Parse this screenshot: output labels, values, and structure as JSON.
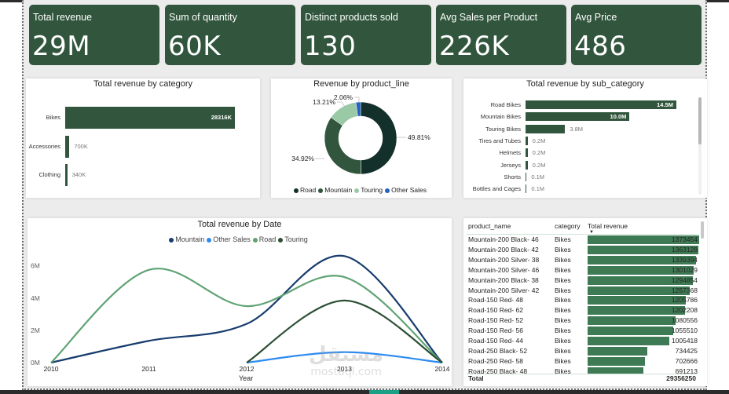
{
  "kpis": [
    {
      "label": "Total revenue",
      "value": "29M"
    },
    {
      "label": "Sum of quantity",
      "value": "60K"
    },
    {
      "label": "Distinct products sold",
      "value": "130"
    },
    {
      "label": "Avg Sales per Product",
      "value": "226K"
    },
    {
      "label": "Avg Price",
      "value": "486"
    }
  ],
  "colors": {
    "kpi_bg": "#31563d",
    "bar": "#31563d",
    "table_bar": "#3e7a54",
    "road": "#14302b",
    "mountain": "#31563d",
    "touring": "#9ac9a6",
    "other_sales": "#2260c4",
    "line_mountain": "#173c6e",
    "line_other": "#2e8bf0",
    "line_road": "#5fa374",
    "line_touring": "#2c4f36"
  },
  "chart_data": [
    {
      "type": "bar",
      "orientation": "horizontal",
      "title": "Total revenue by category",
      "categories": [
        "Bikes",
        "Accessories",
        "Clothing"
      ],
      "values": [
        28316,
        700,
        340
      ],
      "value_labels": [
        "28316K",
        "700K",
        "340K"
      ],
      "unit": "K"
    },
    {
      "type": "pie",
      "donut": true,
      "title": "Revenue by product_line",
      "categories": [
        "Road",
        "Mountain",
        "Touring",
        "Other Sales"
      ],
      "values": [
        49.81,
        34.92,
        13.21,
        2.06
      ],
      "value_labels": [
        "49.81%",
        "34.92%",
        "13.21%",
        "2.06%"
      ],
      "legend": [
        "Road",
        "Mountain",
        "Touring",
        "Other Sales"
      ],
      "legend_position": "bottom"
    },
    {
      "type": "bar",
      "orientation": "horizontal",
      "title": "Total revenue by sub_category",
      "categories": [
        "Road Bikes",
        "Mountain Bikes",
        "Touring Bikes",
        "Tires and Tubes",
        "Helmets",
        "Jerseys",
        "Shorts",
        "Bottles and Cages"
      ],
      "values": [
        14.5,
        10.0,
        3.8,
        0.2,
        0.2,
        0.2,
        0.1,
        0.1
      ],
      "value_labels": [
        "14.5M",
        "10.0M",
        "3.8M",
        "0.2M",
        "0.2M",
        "0.2M",
        "0.1M",
        "0.1M"
      ],
      "unit": "M"
    },
    {
      "type": "line",
      "title": "Total revenue by Date",
      "xlabel": "Year",
      "ylabel": "",
      "x": [
        2010,
        2011,
        2012,
        2013,
        2014
      ],
      "x_ticks": [
        "2010",
        "2011",
        "2012",
        "2013",
        "2014"
      ],
      "y_ticks": [
        "0M",
        "2M",
        "4M",
        "6M"
      ],
      "ylim": [
        0,
        7.2
      ],
      "legend_position": "top",
      "series": [
        {
          "name": "Mountain",
          "values": [
            0,
            1.35,
            2.4,
            6.6,
            0
          ]
        },
        {
          "name": "Other Sales",
          "values": [
            null,
            null,
            0,
            0.65,
            0
          ]
        },
        {
          "name": "Road",
          "values": [
            0,
            5.75,
            3.5,
            5.3,
            0
          ]
        },
        {
          "name": "Touring",
          "values": [
            null,
            null,
            0,
            3.85,
            0
          ]
        }
      ]
    },
    {
      "type": "table",
      "columns": [
        "product_name",
        "category",
        "Total revenue"
      ],
      "rows": [
        [
          "Mountain-200 Black- 46",
          "Bikes",
          1373454
        ],
        [
          "Mountain-200 Black- 42",
          "Bikes",
          1363128
        ],
        [
          "Mountain-200 Silver- 38",
          "Bikes",
          1339394
        ],
        [
          "Mountain-200 Silver- 46",
          "Bikes",
          1301029
        ],
        [
          "Mountain-200 Black- 38",
          "Bikes",
          1294854
        ],
        [
          "Mountain-200 Silver- 42",
          "Bikes",
          1257368
        ],
        [
          "Road-150 Red- 48",
          "Bikes",
          1205786
        ],
        [
          "Road-150 Red- 62",
          "Bikes",
          1202208
        ],
        [
          "Road-150 Red- 52",
          "Bikes",
          1080556
        ],
        [
          "Road-150 Red- 56",
          "Bikes",
          1055510
        ],
        [
          "Road-150 Red- 44",
          "Bikes",
          1005418
        ],
        [
          "Road-250 Black- 52",
          "Bikes",
          734425
        ],
        [
          "Road-250 Red- 58",
          "Bikes",
          702666
        ],
        [
          "Road-250 Black- 48",
          "Bikes",
          691213
        ]
      ],
      "total_label": "Total",
      "total_value": "29356250"
    }
  ],
  "watermark": {
    "arabic": "مستقل",
    "latin": "mostaql.com"
  }
}
